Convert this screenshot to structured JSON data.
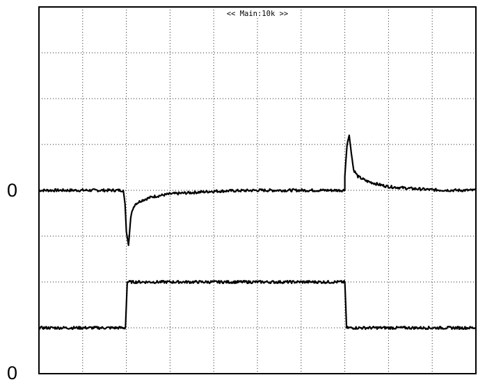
{
  "chart_data": {
    "type": "line",
    "title": "<< Main:10k >>",
    "x_divisions": 10,
    "y_divisions": 8,
    "grid": true,
    "xlim": [
      0,
      10
    ],
    "ylim": [
      -4,
      4
    ],
    "series": [
      {
        "name": "",
        "reference_label": "0",
        "reference_level": 0,
        "x": [
          0,
          1.0,
          1.93,
          1.97,
          2.0,
          2.05,
          2.1,
          2.15,
          2.2,
          2.35,
          2.6,
          3.0,
          3.5,
          4.0,
          5.0,
          6.0,
          7.0,
          7.0,
          7.05,
          7.1,
          7.15,
          7.2,
          7.3,
          7.5,
          7.8,
          8.0,
          8.5,
          9.0,
          9.5,
          10.0
        ],
        "values": [
          0.0,
          0.0,
          0.0,
          -0.3,
          -0.9,
          -1.2,
          -0.6,
          -0.4,
          -0.3,
          -0.22,
          -0.14,
          -0.08,
          -0.05,
          -0.02,
          0.0,
          0.0,
          0.0,
          0.3,
          1.0,
          1.2,
          0.8,
          0.45,
          0.3,
          0.2,
          0.12,
          0.08,
          0.04,
          0.01,
          0.0,
          0.0
        ]
      },
      {
        "name": "",
        "reference_label": "0",
        "reference_level": -4,
        "x": [
          0,
          1.98,
          2.02,
          7.0,
          7.04,
          10.0
        ],
        "values": [
          -3.0,
          -3.0,
          -2.0,
          -2.0,
          -3.0,
          -3.0
        ]
      }
    ]
  }
}
